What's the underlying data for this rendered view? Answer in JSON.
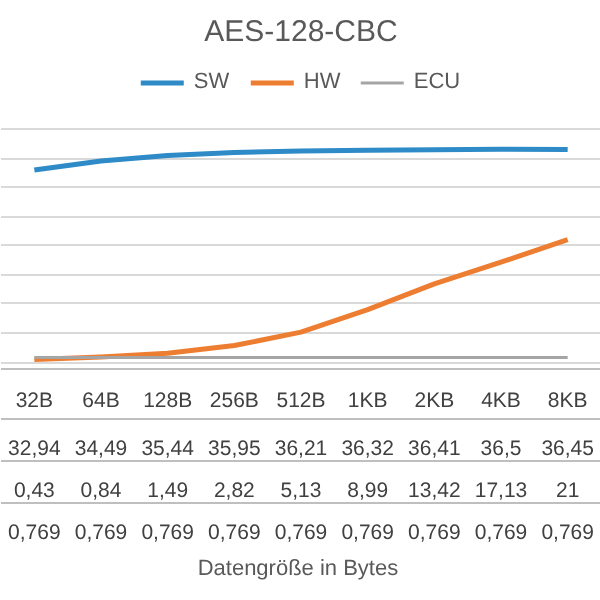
{
  "chart_data": {
    "type": "line",
    "title": "AES-128-CBC",
    "annotations": [
      "Datengröße  in Bytes"
    ],
    "categories": [
      "32B",
      "64B",
      "128B",
      "256B",
      "512B",
      "1KB",
      "2KB",
      "4KB",
      "8KB"
    ],
    "series": [
      {
        "name": "SW",
        "color": "#2e8bc8",
        "values": [
          32.94,
          34.49,
          35.44,
          35.95,
          36.21,
          36.32,
          36.41,
          36.5,
          36.45
        ],
        "value_labels": [
          "32,94",
          "34,49",
          "35,44",
          "35,95",
          "36,21",
          "36,32",
          "36,41",
          "36,5",
          "36,45"
        ]
      },
      {
        "name": "HW",
        "color": "#ed7d31",
        "values": [
          0.43,
          0.84,
          1.49,
          2.82,
          5.13,
          8.99,
          13.42,
          17.13,
          21
        ],
        "value_labels": [
          "0,43",
          "0,84",
          "1,49",
          "2,82",
          "5,13",
          "8,99",
          "13,42",
          "17,13",
          "21"
        ]
      },
      {
        "name": "ECU",
        "color": "#a5a5a5",
        "values": [
          0.769,
          0.769,
          0.769,
          0.769,
          0.769,
          0.769,
          0.769,
          0.769,
          0.769
        ],
        "value_labels": [
          "0,769",
          "0,769",
          "0,769",
          "0,769",
          "0,769",
          "0,769",
          "0,769",
          "0,769",
          "0,769"
        ]
      }
    ],
    "yticks": [
      {
        "value": 0,
        "label": null
      },
      {
        "value": 5,
        "label": null
      },
      {
        "value": 10,
        "label": null
      },
      {
        "value": 15,
        "label": null
      },
      {
        "value": 20,
        "label": null
      },
      {
        "value": 25,
        "label": null
      },
      {
        "value": 30,
        "label": null
      },
      {
        "value": 35,
        "label": null
      },
      {
        "value": 40,
        "label": null
      }
    ],
    "grid": "y",
    "legend": "top",
    "tick_labels": "x",
    "line_style": "solid",
    "marker": "none"
  }
}
